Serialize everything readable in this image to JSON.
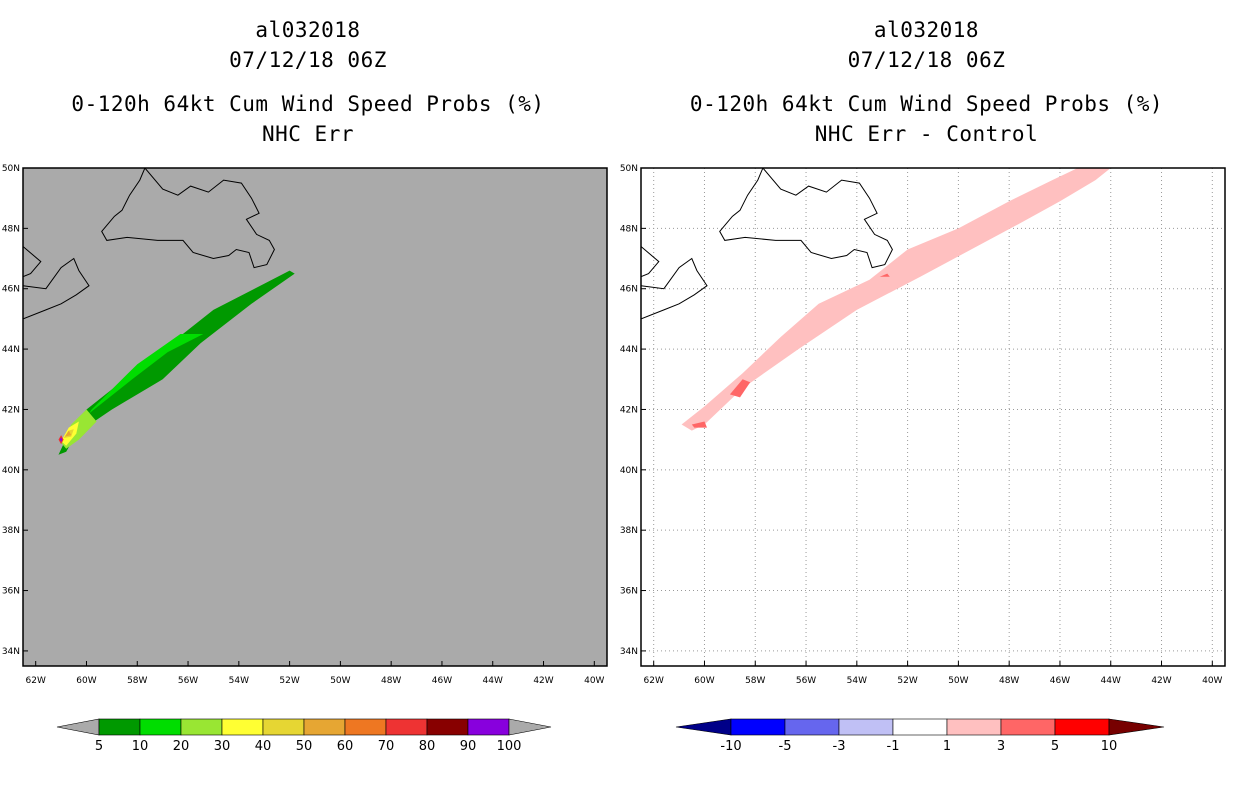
{
  "colors": {
    "land_gray": "#aaaaaa",
    "prob_levels": [
      "#009900",
      "#00dd00",
      "#99e633",
      "#ffff33",
      "#e6d633",
      "#e6a633",
      "#ee7722",
      "#ee3333",
      "#880000",
      "#8800dd"
    ],
    "diff_levels": [
      "#000088",
      "#0000ff",
      "#6666ee",
      "#c0c0f5",
      "#ffffff",
      "#ffc0c0",
      "#ff6666",
      "#ff0000",
      "#770000"
    ],
    "coast": "#000000",
    "grid": "#9a9a9a"
  },
  "chart_data": [
    {
      "type": "heatmap",
      "storm_id": "al032018",
      "date": "07/12/18 06Z",
      "title": "0-120h 64kt Cum Wind Speed Probs (%)",
      "subtitle": "NHC Err",
      "xlim": [
        -62.5,
        -39.5
      ],
      "ylim": [
        33.5,
        50
      ],
      "x_ticks": [
        "62W",
        "60W",
        "58W",
        "56W",
        "54W",
        "52W",
        "50W",
        "48W",
        "46W",
        "44W",
        "42W",
        "40W"
      ],
      "y_ticks": [
        "34N",
        "36N",
        "38N",
        "40N",
        "42N",
        "44N",
        "46N",
        "48N",
        "50N"
      ],
      "colorbar": {
        "labels": [
          "5",
          "10",
          "20",
          "30",
          "40",
          "50",
          "60",
          "70",
          "80",
          "90",
          "100"
        ]
      },
      "contour_regions": [
        {
          "level": 5,
          "points": [
            [
              -61.1,
              40.5
            ],
            [
              -60.6,
              41.4
            ],
            [
              -60.0,
              42.0
            ],
            [
              -58.5,
              43.0
            ],
            [
              -56.5,
              44.3
            ],
            [
              -55.0,
              45.3
            ],
            [
              -52.0,
              46.6
            ],
            [
              -51.8,
              46.5
            ],
            [
              -53.5,
              45.5
            ],
            [
              -55.5,
              44.2
            ],
            [
              -57.0,
              43.0
            ],
            [
              -59.0,
              42.0
            ],
            [
              -60.4,
              41.2
            ],
            [
              -60.8,
              40.6
            ]
          ]
        },
        {
          "level": 10,
          "points": [
            [
              -60.7,
              41.0
            ],
            [
              -60.0,
              41.8
            ],
            [
              -58.2,
              43.0
            ],
            [
              -56.8,
              43.9
            ],
            [
              -55.4,
              44.5
            ],
            [
              -56.3,
              44.5
            ],
            [
              -58.0,
              43.5
            ],
            [
              -59.8,
              42.0
            ],
            [
              -60.4,
              41.2
            ]
          ]
        },
        {
          "level": 20,
          "points": [
            [
              -61.0,
              40.9
            ],
            [
              -60.6,
              41.5
            ],
            [
              -60.0,
              42.0
            ],
            [
              -59.6,
              41.6
            ],
            [
              -60.3,
              41.0
            ],
            [
              -60.8,
              40.7
            ]
          ]
        },
        {
          "level": 30,
          "points": [
            [
              -61.0,
              40.95
            ],
            [
              -60.7,
              41.4
            ],
            [
              -60.3,
              41.6
            ],
            [
              -60.4,
              41.2
            ],
            [
              -60.8,
              40.8
            ]
          ]
        },
        {
          "level": 40,
          "points": [
            [
              -60.9,
              41.05
            ],
            [
              -60.7,
              41.3
            ],
            [
              -60.5,
              41.35
            ],
            [
              -60.6,
              41.1
            ]
          ]
        },
        {
          "level": 50,
          "points": [
            [
              -60.85,
              41.1
            ],
            [
              -60.7,
              41.3
            ],
            [
              -60.6,
              41.15
            ]
          ]
        },
        {
          "level": 70,
          "points": [
            [
              -61.1,
              41.0
            ],
            [
              -61.0,
              41.15
            ],
            [
              -60.9,
              41.0
            ],
            [
              -61.0,
              40.85
            ]
          ]
        },
        {
          "level": 90,
          "points": [
            [
              -61.05,
              41.0
            ],
            [
              -61.0,
              41.08
            ],
            [
              -60.95,
              41.0
            ],
            [
              -61.0,
              40.92
            ]
          ]
        }
      ]
    },
    {
      "type": "heatmap",
      "storm_id": "al032018",
      "date": "07/12/18 06Z",
      "title": "0-120h 64kt Cum Wind Speed Probs (%)",
      "subtitle": "NHC Err - Control",
      "xlim": [
        -62.5,
        -39.5
      ],
      "ylim": [
        33.5,
        50
      ],
      "x_ticks": [
        "62W",
        "60W",
        "58W",
        "56W",
        "54W",
        "52W",
        "50W",
        "48W",
        "46W",
        "44W",
        "42W",
        "40W"
      ],
      "y_ticks": [
        "34N",
        "36N",
        "38N",
        "40N",
        "42N",
        "44N",
        "46N",
        "48N",
        "50N"
      ],
      "colorbar": {
        "labels": [
          "-10",
          "-5",
          "-3",
          "-1",
          "1",
          "3",
          "5",
          "10"
        ]
      },
      "contour_regions": [
        {
          "level": 1,
          "points": [
            [
              -60.9,
              41.5
            ],
            [
              -60.0,
              42.1
            ],
            [
              -58.5,
              43.2
            ],
            [
              -57.0,
              44.4
            ],
            [
              -55.5,
              45.5
            ],
            [
              -53.5,
              46.3
            ],
            [
              -52.0,
              47.3
            ],
            [
              -50.0,
              48.0
            ],
            [
              -48.0,
              48.9
            ],
            [
              -46.3,
              49.6
            ],
            [
              -45.3,
              50.0
            ],
            [
              -44.0,
              50.0
            ],
            [
              -44.6,
              49.6
            ],
            [
              -46.0,
              48.9
            ],
            [
              -47.5,
              48.2
            ],
            [
              -49.5,
              47.3
            ],
            [
              -51.5,
              46.4
            ],
            [
              -54.0,
              45.3
            ],
            [
              -56.3,
              44.0
            ],
            [
              -58.5,
              42.7
            ],
            [
              -60.0,
              41.5
            ],
            [
              -60.5,
              41.3
            ]
          ]
        },
        {
          "level": 3,
          "points": [
            [
              -59.0,
              42.5
            ],
            [
              -58.5,
              43.0
            ],
            [
              -58.2,
              42.9
            ],
            [
              -58.6,
              42.4
            ]
          ]
        },
        {
          "level": 3,
          "points": [
            [
              -60.5,
              41.5
            ],
            [
              -60.0,
              41.6
            ],
            [
              -59.9,
              41.4
            ],
            [
              -60.4,
              41.4
            ]
          ]
        },
        {
          "level": 3,
          "points": [
            [
              -53.1,
              46.4
            ],
            [
              -52.8,
              46.5
            ],
            [
              -52.7,
              46.4
            ]
          ]
        }
      ]
    }
  ]
}
